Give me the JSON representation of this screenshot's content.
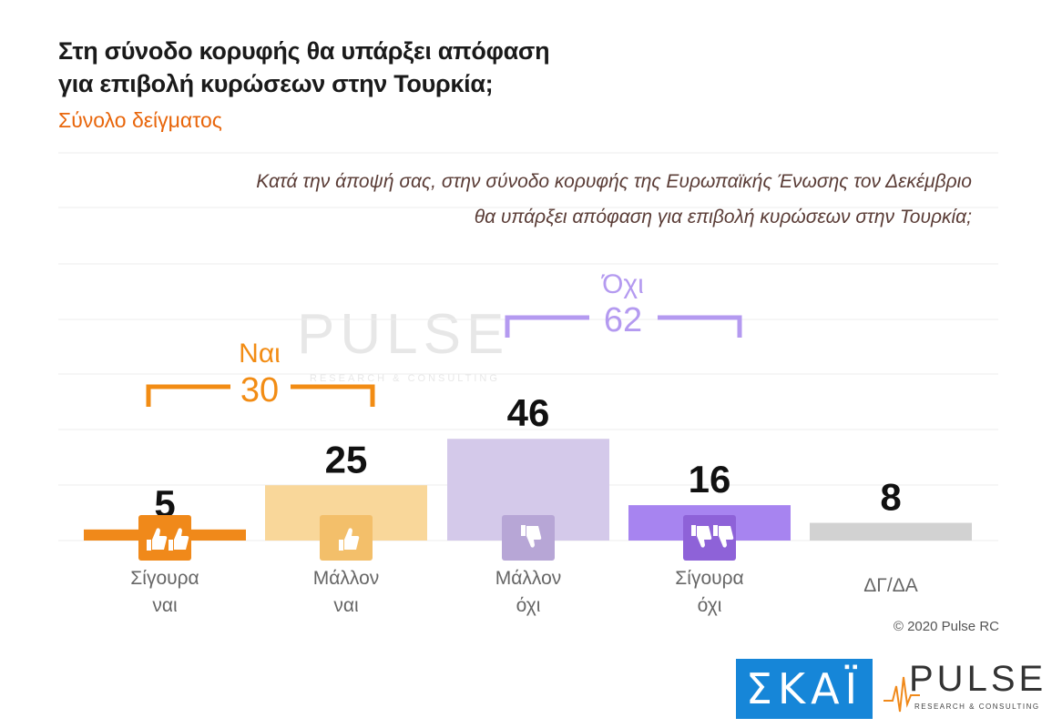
{
  "title_line1": "Στη σύνοδο κορυφής θα υπάρξει απόφαση",
  "title_line2": "για επιβολή κυρώσεων στην Τουρκία;",
  "subtitle": "Σύνολο δείγματος",
  "question_line1": "Κατά την άποψή σας, στην σύνοδο κορυφής της Ευρωπαϊκής Ένωσης τον Δεκέμβριο",
  "question_line2": "θα υπάρξει απόφαση για επιβολή κυρώσεων στην Τουρκία;",
  "copyright": "© 2020 Pulse RC",
  "watermark": {
    "word": "PULSE",
    "sub": "RESEARCH & CONSULTING"
  },
  "logos": {
    "skai": "ΣΚΑΪ",
    "pulse_word": "PULSE",
    "pulse_sub": "RESEARCH & CONSULTING"
  },
  "icons": [
    "thumbs-up-double-icon",
    "thumbs-up-icon",
    "thumbs-down-icon",
    "thumbs-down-double-icon"
  ],
  "chart_data": {
    "type": "bar",
    "categories": [
      [
        "Σίγουρα",
        "ναι"
      ],
      [
        "Μάλλον",
        "ναι"
      ],
      [
        "Μάλλον",
        "όχι"
      ],
      [
        "Σίγουρα",
        "όχι"
      ],
      [
        "ΔΓ/ΔΑ"
      ]
    ],
    "values": [
      5,
      25,
      46,
      16,
      8
    ],
    "colors": [
      "#f0891a",
      "#f9d79a",
      "#d4c9ea",
      "#a784f0",
      "#d2d2d2"
    ],
    "groups": [
      {
        "label": "Ναι",
        "value": "30",
        "color": "#f28c14"
      },
      {
        "label": "Όχι",
        "value": "62",
        "color": "#b49af0"
      }
    ],
    "grid": true
  }
}
